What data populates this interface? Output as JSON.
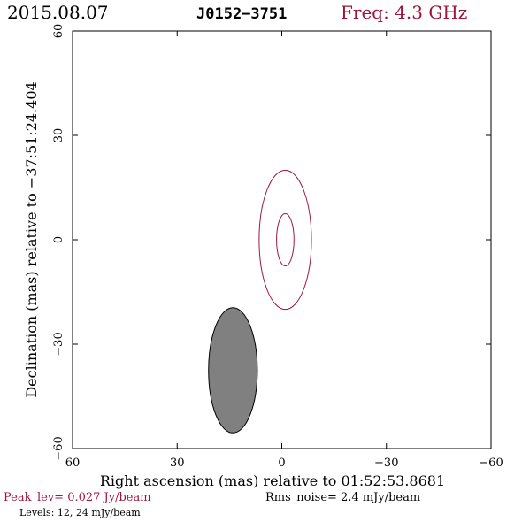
{
  "header": {
    "date": "2015.08.07",
    "source": "J0152−3751",
    "freq": "Freq: 4.3 GHz"
  },
  "colors": {
    "accent": "#a0153e",
    "beam_fill": "#808080",
    "text": "#000000"
  },
  "chart_data": {
    "type": "contour",
    "xlabel": "Right ascension (mas) relative to 01:52:53.8681",
    "ylabel": "Declination (mas) relative to −37:51:24.404",
    "xlim": [
      60,
      -60
    ],
    "ylim": [
      -60,
      60
    ],
    "x_ticks": [
      60,
      30,
      0,
      -30,
      -60
    ],
    "y_ticks": [
      60,
      30,
      0,
      -30,
      -60
    ],
    "x_tick_labels": [
      "60",
      "30",
      "0",
      "−30",
      "−60"
    ],
    "y_tick_labels": [
      "60",
      "30",
      "0",
      "−30",
      "−60"
    ],
    "contours": [
      {
        "level_mjy": 12,
        "center": [
          -1,
          0
        ],
        "ra_radius": 7.5,
        "dec_radius": 20
      },
      {
        "level_mjy": 24,
        "center": [
          -1,
          0
        ],
        "ra_radius": 2.5,
        "dec_radius": 7.5
      }
    ],
    "beam": {
      "center": [
        14,
        -37.5
      ],
      "ra_radius": 7,
      "dec_radius": 18,
      "fill": "#808080"
    },
    "contour_color": "#a0153e"
  },
  "footer": {
    "peak": "Peak_lev=  0.027 Jy/beam",
    "rms": "Rms_noise=  2.4 mJy/beam",
    "levels": "Levels:  12,  24 mJy/beam"
  }
}
